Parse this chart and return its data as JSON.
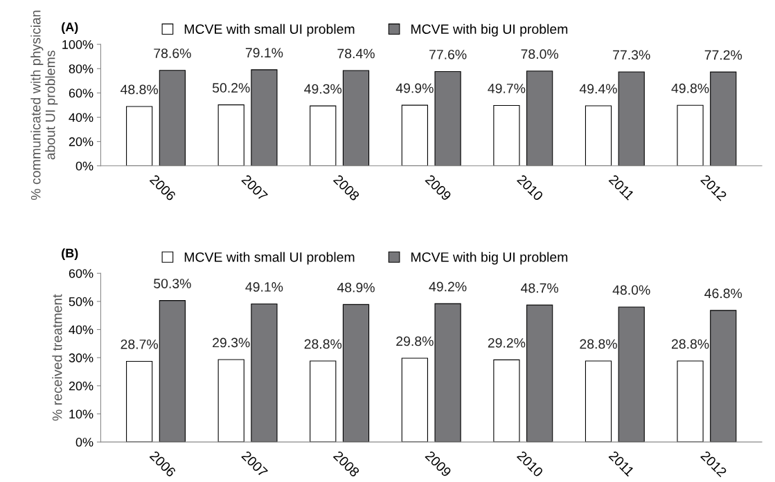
{
  "chart_data": [
    {
      "type": "bar",
      "title": "(A)",
      "ylabel": "% communicated with physician about UI problems",
      "categories": [
        "2006",
        "2007",
        "2008",
        "2009",
        "2010",
        "2011",
        "2012"
      ],
      "ylim": [
        0,
        100
      ],
      "yticks": [
        {
          "value": 0,
          "label": "0%"
        },
        {
          "value": 20,
          "label": "20%"
        },
        {
          "value": 40,
          "label": "40%"
        },
        {
          "value": 60,
          "label": "60%"
        },
        {
          "value": 80,
          "label": "80%"
        },
        {
          "value": 100,
          "label": "100%"
        }
      ],
      "legend": "top",
      "grid": false,
      "series": [
        {
          "name": "MCVE with small UI problem",
          "color": "#ffffff",
          "values": [
            48.8,
            50.2,
            49.3,
            49.9,
            49.7,
            49.4,
            49.8
          ],
          "value_labels": [
            "48.8%",
            "50.2%",
            "49.3%",
            "49.9%",
            "49.7%",
            "49.4%",
            "49.8%"
          ]
        },
        {
          "name": "MCVE with big UI problem",
          "color": "#77777a",
          "values": [
            78.6,
            79.1,
            78.4,
            77.6,
            78.0,
            77.3,
            77.2
          ],
          "value_labels": [
            "78.6%",
            "79.1%",
            "78.4%",
            "77.6%",
            "78.0%",
            "77.3%",
            "77.2%"
          ]
        }
      ]
    },
    {
      "type": "bar",
      "title": "(B)",
      "ylabel": "% received treatment",
      "categories": [
        "2006",
        "2007",
        "2008",
        "2009",
        "2010",
        "2011",
        "2012"
      ],
      "ylim": [
        0,
        60
      ],
      "yticks": [
        {
          "value": 0,
          "label": "0%"
        },
        {
          "value": 10,
          "label": "10%"
        },
        {
          "value": 20,
          "label": "20%"
        },
        {
          "value": 30,
          "label": "30%"
        },
        {
          "value": 40,
          "label": "40%"
        },
        {
          "value": 50,
          "label": "50%"
        },
        {
          "value": 60,
          "label": "60%"
        }
      ],
      "legend": "top",
      "grid": false,
      "series": [
        {
          "name": "MCVE with small UI problem",
          "color": "#ffffff",
          "values": [
            28.7,
            29.3,
            28.8,
            29.8,
            29.2,
            28.8,
            28.8
          ],
          "value_labels": [
            "28.7%",
            "29.3%",
            "28.8%",
            "29.8%",
            "29.2%",
            "28.8%",
            "28.8%"
          ]
        },
        {
          "name": "MCVE with big UI problem",
          "color": "#77777a",
          "values": [
            50.3,
            49.1,
            48.9,
            49.2,
            48.7,
            48.0,
            46.8
          ],
          "value_labels": [
            "50.3%",
            "49.1%",
            "48.9%",
            "49.2%",
            "48.7%",
            "48.0%",
            "46.8%"
          ]
        }
      ]
    }
  ]
}
